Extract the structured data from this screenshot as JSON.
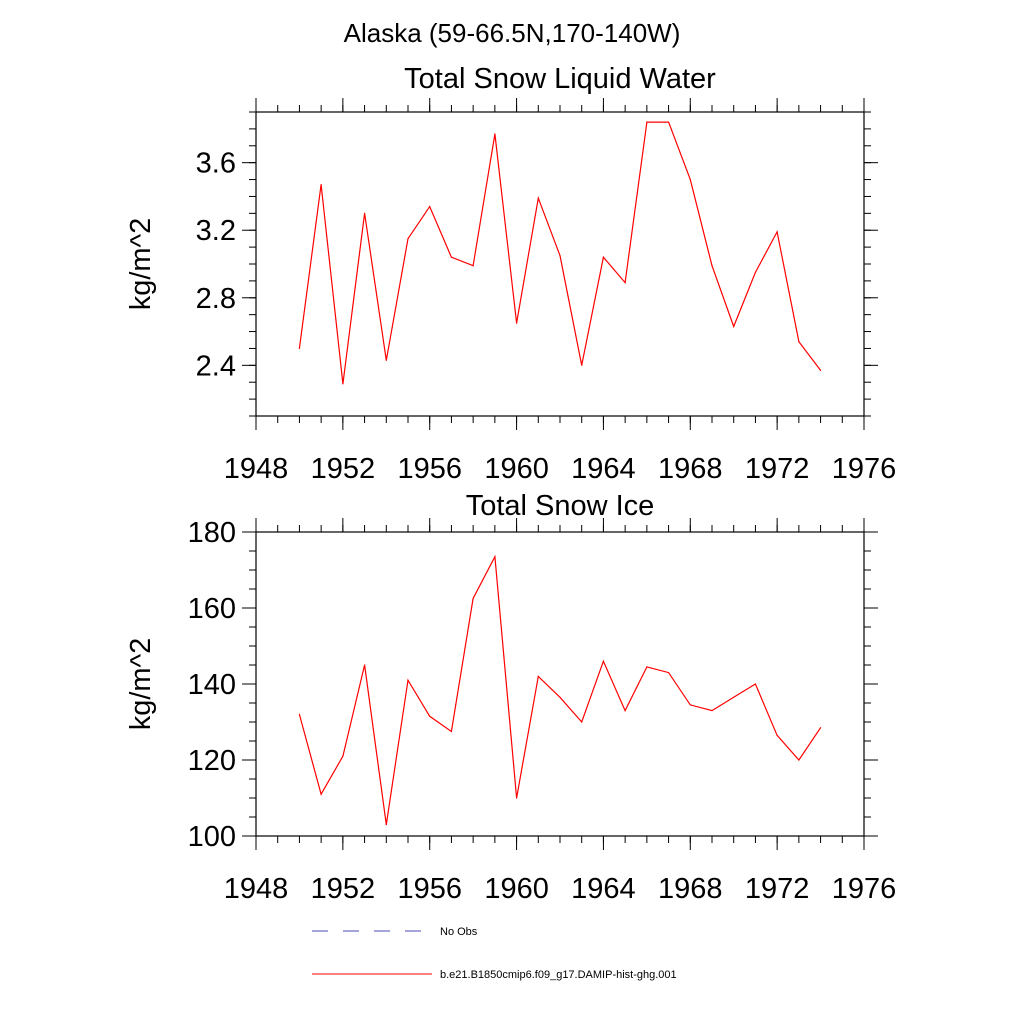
{
  "figure": {
    "title": "Alaska (59-66.5N,170-140W)"
  },
  "legend": {
    "entries": [
      {
        "label": "No Obs",
        "color": "#4a4ab0",
        "style": "dashed"
      },
      {
        "label": "b.e21.B1850cmip6.f09_g17.DAMIP-hist-ghg.001",
        "color": "#ff0000",
        "style": "solid"
      }
    ]
  },
  "chart_data": [
    {
      "type": "line",
      "title": "Total Snow Liquid Water",
      "xlabel": "",
      "ylabel": "kg/m^2",
      "xlim": [
        1948,
        1976
      ],
      "ylim": [
        2.1,
        3.9
      ],
      "xticks": [
        1948,
        1952,
        1956,
        1960,
        1964,
        1968,
        1972,
        1976
      ],
      "xtick_labels": [
        "1948",
        "1952",
        "1956",
        "1960",
        "1964",
        "1968",
        "1972",
        "1976"
      ],
      "yticks": [
        2.4,
        2.8,
        3.2,
        3.6
      ],
      "ytick_labels": [
        "2.4",
        "2.8",
        "3.2",
        "3.6"
      ],
      "x_minor_step": 1,
      "y_minor_step": 0.1,
      "grid": false,
      "series": [
        {
          "name": "b.e21.B1850cmip6.f09_g17.DAMIP-hist-ghg.001",
          "color": "#ff0000",
          "x": [
            1950,
            1951,
            1952,
            1953,
            1954,
            1955,
            1956,
            1957,
            1958,
            1959,
            1960,
            1961,
            1962,
            1963,
            1964,
            1965,
            1966,
            1967,
            1968,
            1969,
            1970,
            1971,
            1972,
            1973,
            1974
          ],
          "values": [
            2.5,
            3.47,
            2.29,
            3.3,
            2.43,
            3.15,
            3.34,
            3.04,
            2.99,
            3.77,
            2.65,
            3.39,
            3.05,
            2.4,
            3.04,
            2.89,
            3.84,
            3.84,
            3.5,
            2.99,
            2.63,
            2.95,
            3.19,
            2.54,
            2.37
          ]
        }
      ]
    },
    {
      "type": "line",
      "title": "Total Snow Ice",
      "xlabel": "",
      "ylabel": "kg/m^2",
      "xlim": [
        1948,
        1976
      ],
      "ylim": [
        100,
        180
      ],
      "xticks": [
        1948,
        1952,
        1956,
        1960,
        1964,
        1968,
        1972,
        1976
      ],
      "xtick_labels": [
        "1948",
        "1952",
        "1956",
        "1960",
        "1964",
        "1968",
        "1972",
        "1976"
      ],
      "yticks": [
        100,
        120,
        140,
        160,
        180
      ],
      "ytick_labels": [
        "100",
        "120",
        "140",
        "160",
        "180"
      ],
      "x_minor_step": 1,
      "y_minor_step": 5,
      "grid": false,
      "series": [
        {
          "name": "b.e21.B1850cmip6.f09_g17.DAMIP-hist-ghg.001",
          "color": "#ff0000",
          "x": [
            1950,
            1951,
            1952,
            1953,
            1954,
            1955,
            1956,
            1957,
            1958,
            1959,
            1960,
            1961,
            1962,
            1963,
            1964,
            1965,
            1966,
            1967,
            1968,
            1969,
            1970,
            1971,
            1972,
            1973,
            1974
          ],
          "values": [
            132,
            111,
            121,
            145,
            103,
            141,
            131.5,
            127.5,
            162.5,
            173.5,
            110,
            142,
            136.5,
            130,
            146,
            133,
            144.5,
            143,
            134.5,
            133,
            136.5,
            140,
            126.5,
            120,
            128.5
          ]
        }
      ]
    }
  ]
}
